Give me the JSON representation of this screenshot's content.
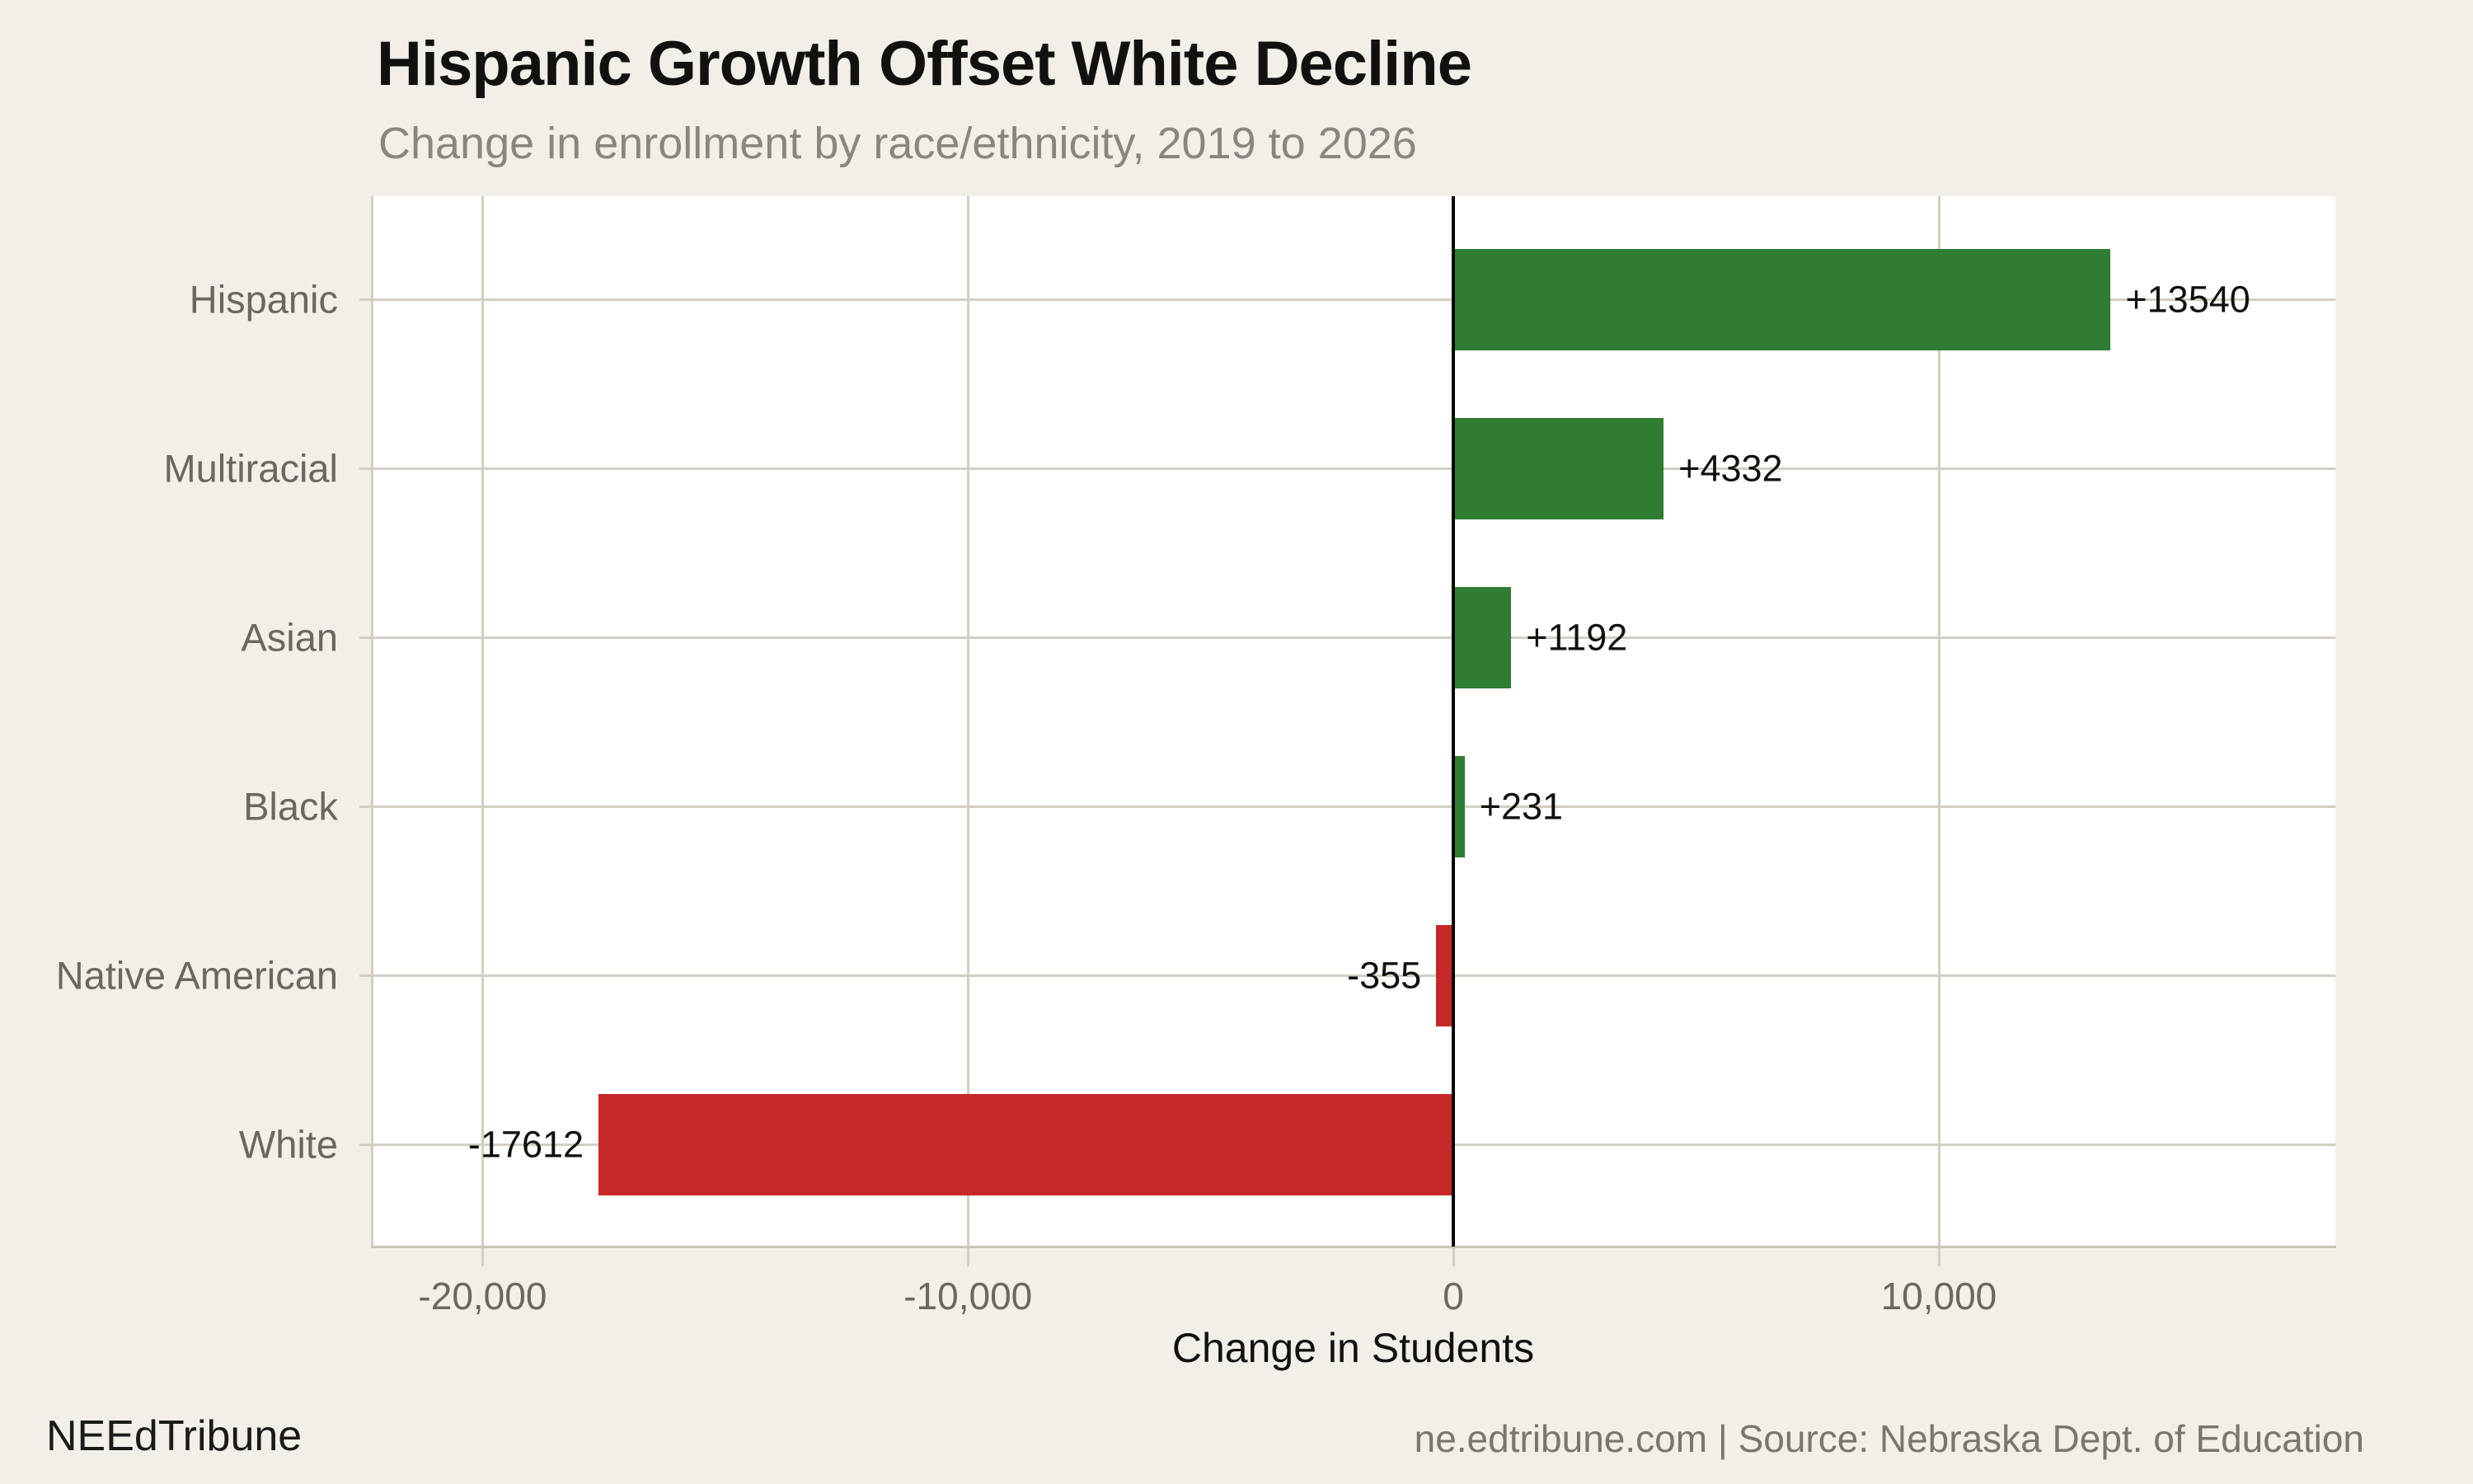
{
  "chart_data": {
    "type": "bar",
    "orientation": "horizontal",
    "title": "Hispanic Growth Offset White Decline",
    "subtitle": "Change in enrollment by race/ethnicity, 2019 to 2026",
    "categories": [
      "Hispanic",
      "Multiracial",
      "Asian",
      "Black",
      "Native American",
      "White"
    ],
    "values": [
      13540,
      4332,
      1192,
      231,
      -355,
      -17612
    ],
    "value_labels": [
      "+13540",
      "+4332",
      "+1192",
      "+231",
      "-355",
      "-17612"
    ],
    "xlabel": "Change in Students",
    "xticks": [
      {
        "value": -20000,
        "label": "-20,000"
      },
      {
        "value": -10000,
        "label": "-10,000"
      },
      {
        "value": 0,
        "label": "0"
      },
      {
        "value": 10000,
        "label": "10,000"
      }
    ],
    "xlim": [
      -22300,
      18170
    ],
    "grid": true,
    "legend": "none",
    "positive_color": "#2e7d32",
    "negative_color": "#c62828"
  },
  "footer": {
    "brand": "NEEdTribune",
    "source": "ne.edtribune.com | Source: Nebraska Dept. of Education"
  },
  "colors": {
    "background": "#f2efe9",
    "plot_background": "#ffffff",
    "gridline": "#d2cec2",
    "zero_line": "#000000",
    "positive_bar": "#2e7d32",
    "negative_bar": "#c62828",
    "axis_text": "#6b675f",
    "title_text": "#111111",
    "subtitle_text": "#8a867e",
    "value_text": "#111111",
    "footer_text": "#7b766c"
  }
}
